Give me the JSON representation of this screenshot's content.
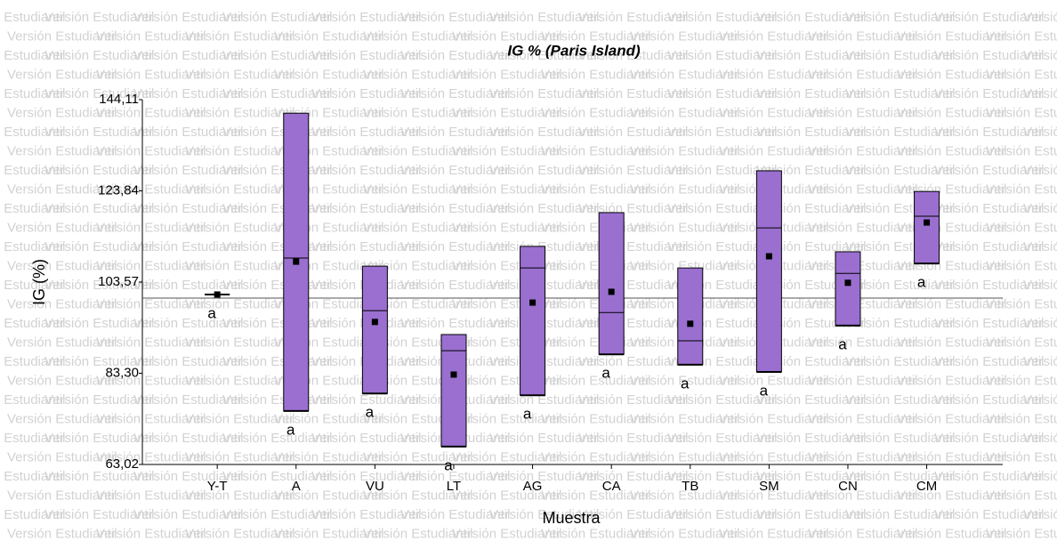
{
  "watermark": "Versión Estudiantil",
  "chart_data": {
    "type": "box",
    "title": "IG % (Paris Island)",
    "x_label": "Muestra",
    "y_label": "IG (%)",
    "categories": [
      "Y-T",
      "A",
      "VU",
      "LT",
      "AG",
      "CA",
      "TB",
      "SM",
      "CN",
      "CM"
    ],
    "min": [
      100.8,
      74.9,
      78.8,
      67.0,
      78.4,
      87.5,
      85.2,
      83.6,
      93.9,
      107.7
    ],
    "max": [
      100.8,
      141.1,
      107.1,
      91.9,
      111.5,
      119.0,
      106.7,
      128.3,
      110.3,
      123.7
    ],
    "median": [
      100.8,
      108.9,
      97.2,
      88.3,
      106.7,
      96.8,
      90.5,
      115.6,
      105.5,
      118.2
    ],
    "mean": [
      100.8,
      108.1,
      94.7,
      83.0,
      99.0,
      101.4,
      94.3,
      109.3,
      103.4,
      116.8
    ],
    "group_letters": [
      "a",
      "a",
      "a",
      "a",
      "a",
      "a",
      "a",
      "a",
      "a",
      "a"
    ],
    "reference_line": 100,
    "color": "#9a6fd0",
    "ylim": [
      63.02,
      144.11
    ],
    "yticks": [
      {
        "value": 63.02,
        "label": "63,02"
      },
      {
        "value": 83.3,
        "label": "83,30"
      },
      {
        "value": 103.57,
        "label": "103,57"
      },
      {
        "value": 123.84,
        "label": "123,84"
      },
      {
        "value": 144.11,
        "label": "144,11"
      }
    ]
  }
}
